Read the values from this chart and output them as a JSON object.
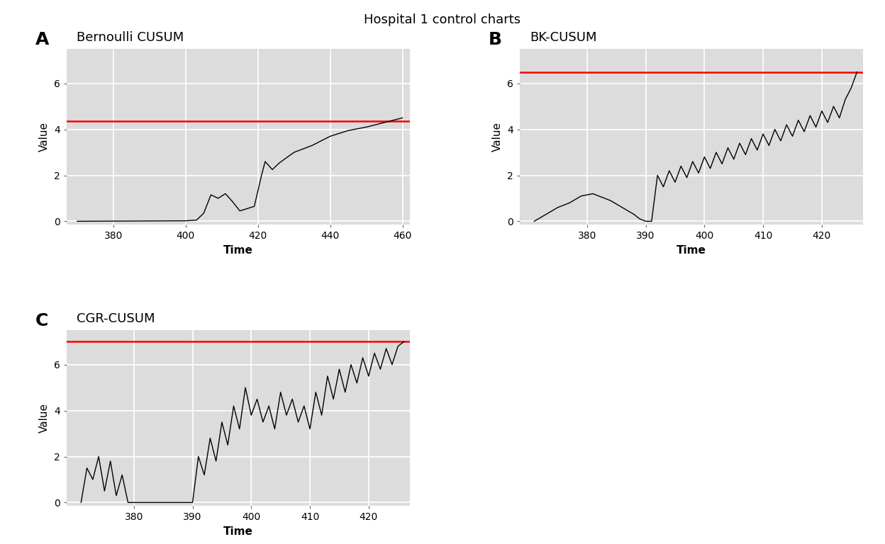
{
  "title": "Hospital 1 control charts",
  "title_fontsize": 13,
  "panel_label_fontsize": 18,
  "subplot_title_fontsize": 13,
  "axis_label_fontsize": 11,
  "tick_fontsize": 10,
  "bg_color": "#DCDCDC",
  "grid_color": "white",
  "line_color": "black",
  "threshold_color": "red",
  "panels": [
    {
      "label": "A",
      "title": "Bernoulli CUSUM",
      "xlabel": "Time",
      "ylabel": "Value",
      "xlim": [
        367,
        462
      ],
      "ylim": [
        -0.15,
        7.5
      ],
      "xticks": [
        380,
        400,
        420,
        440,
        460
      ],
      "yticks": [
        0,
        2,
        4,
        6
      ],
      "threshold": 4.36
    },
    {
      "label": "B",
      "title": "BK-CUSUM",
      "xlabel": "Time",
      "ylabel": "Value",
      "xlim": [
        368.5,
        427
      ],
      "ylim": [
        -0.15,
        7.5
      ],
      "xticks": [
        380,
        390,
        400,
        410,
        420
      ],
      "yticks": [
        0,
        2,
        4,
        6
      ],
      "threshold": 6.5
    },
    {
      "label": "C",
      "title": "CGR-CUSUM",
      "xlabel": "Time",
      "ylabel": "Value",
      "xlim": [
        368.5,
        427
      ],
      "ylim": [
        -0.15,
        7.5
      ],
      "xticks": [
        380,
        390,
        400,
        410,
        420
      ],
      "yticks": [
        0,
        2,
        4,
        6
      ],
      "threshold": 7.0
    }
  ]
}
